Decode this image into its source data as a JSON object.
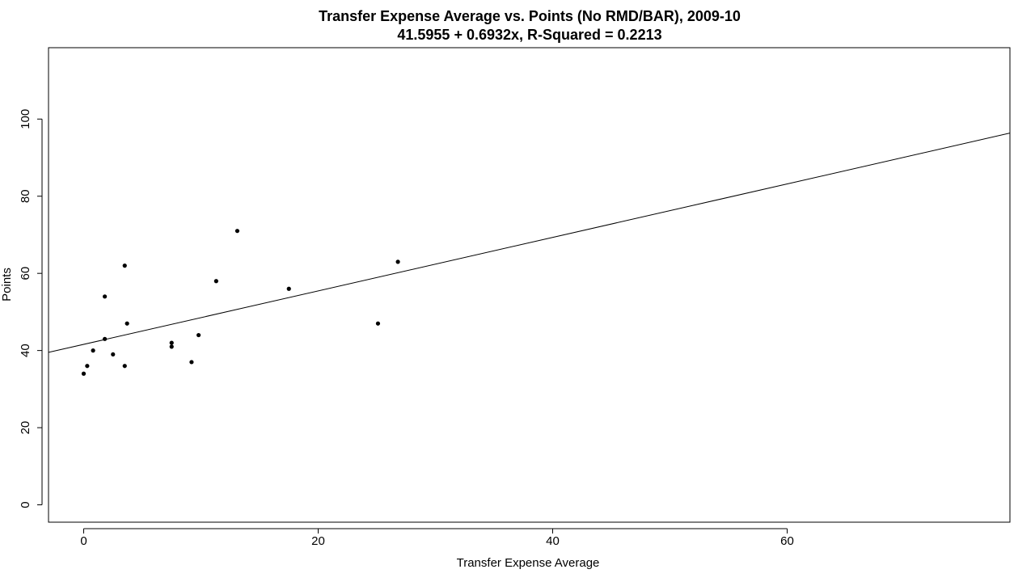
{
  "chart_data": {
    "type": "scatter",
    "title": "Transfer Expense Average vs. Points (No RMD/BAR), 2009-10",
    "subtitle": "41.5955 + 0.6932x, R-Squared = 0.2213",
    "xlabel": "Transfer Expense Average",
    "ylabel": "Points",
    "xlim": [
      -3.0,
      79.0
    ],
    "ylim": [
      -4.5,
      118.5
    ],
    "xticks": [
      0,
      20,
      40,
      60
    ],
    "yticks": [
      0,
      20,
      40,
      60,
      80,
      100
    ],
    "grid": false,
    "legend": "none",
    "regression": {
      "intercept": 41.5955,
      "slope": 0.6932
    },
    "series": [
      {
        "x": [
          0.0,
          0.3,
          0.8,
          1.8,
          1.8,
          2.5,
          3.5,
          3.5,
          3.7,
          7.5,
          7.5,
          9.2,
          9.8,
          11.3,
          13.1,
          17.5,
          25.1,
          26.8
        ],
        "y": [
          34,
          36,
          40,
          54,
          43,
          39,
          62,
          36,
          47,
          42,
          41,
          37,
          44,
          58,
          71,
          56,
          47,
          63
        ]
      }
    ]
  }
}
